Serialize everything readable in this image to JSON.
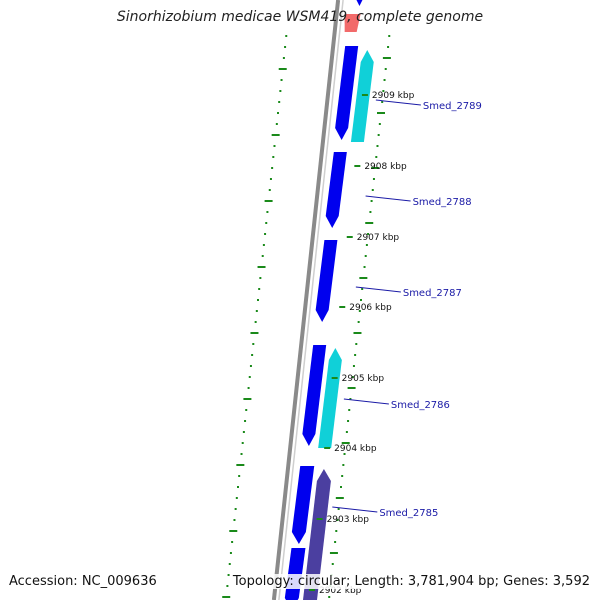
{
  "title": "Sinorhizobium medicae WSM419, complete genome",
  "accession": "Accession: NC_009636",
  "summary": "Topology: circular; Length: 3,781,904 bp; Genes: 3,592",
  "colors": {
    "backbone": "#8a8a8a",
    "gene_forward": "#0000ee",
    "gene_cds": "#10d0d8",
    "gene_other": "#4b3fa0",
    "dots": "#1a8a1a",
    "gene_label": "#1a1aa6",
    "highlight": "#f05050"
  },
  "ticks": [
    {
      "label": "2909 kbp"
    },
    {
      "label": "2908 kbp"
    },
    {
      "label": "2907 kbp"
    },
    {
      "label": "2906 kbp"
    },
    {
      "label": "2905 kbp"
    },
    {
      "label": "2904 kbp"
    },
    {
      "label": "2903 kbp"
    },
    {
      "label": "2902 kbp"
    }
  ],
  "genes": [
    {
      "label": "Smed_2789"
    },
    {
      "label": "Smed_2788"
    },
    {
      "label": "Smed_2787"
    },
    {
      "label": "Smed_2786"
    },
    {
      "label": "Smed_2785"
    }
  ]
}
